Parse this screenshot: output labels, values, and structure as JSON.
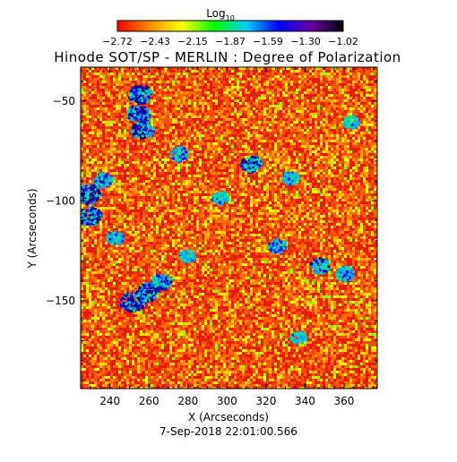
{
  "chart_data": {
    "type": "heatmap",
    "title": "Hinode SOT/SP - MERLIN : Degree of Polarization",
    "xlabel": "X (Arcseconds)",
    "ylabel": "Y (Arcseconds)",
    "timestamp": "7-Sep-2018 22:01:00.566",
    "colorbar": {
      "label_base": "Log",
      "label_sub": "10",
      "ticks": [
        "−2.72",
        "−2.43",
        "−2.15",
        "−1.87",
        "−1.59",
        "−1.30",
        "−1.02"
      ],
      "range": [
        -2.72,
        -1.02
      ],
      "colormap": "rainbow (red low → black high)",
      "stops": [
        "#ff0000",
        "#ff8c00",
        "#ffff00",
        "#00ff00",
        "#00ccff",
        "#0000ff",
        "#6a00a8",
        "#000000"
      ]
    },
    "xlim": [
      225,
      377
    ],
    "ylim": [
      -194,
      -33
    ],
    "x_ticks": [
      240,
      260,
      280,
      300,
      320,
      340,
      360
    ],
    "y_ticks": [
      -50,
      -100,
      -150
    ],
    "grid": false,
    "dominant_color": "#ff3a12",
    "field_colors": [
      "#e81d09",
      "#f44a0a",
      "#ff6a00",
      "#ff9a00",
      "#ffd000",
      "#f2ff00",
      "#9cff00"
    ],
    "patch_colors": [
      "#00e0a0",
      "#00aaff",
      "#1010ff",
      "#000088"
    ],
    "patches": [
      {
        "x": 255,
        "y": -46,
        "level": 0.9
      },
      {
        "x": 254,
        "y": -56,
        "level": 0.85
      },
      {
        "x": 256,
        "y": -64,
        "level": 0.8
      },
      {
        "x": 228,
        "y": -96,
        "level": 1.0
      },
      {
        "x": 229,
        "y": -107,
        "level": 0.9
      },
      {
        "x": 236,
        "y": -89,
        "level": 0.55
      },
      {
        "x": 251,
        "y": -150,
        "level": 0.95
      },
      {
        "x": 259,
        "y": -145,
        "level": 0.9
      },
      {
        "x": 266,
        "y": -140,
        "level": 0.7
      },
      {
        "x": 312,
        "y": -81,
        "level": 0.7
      },
      {
        "x": 275,
        "y": -76,
        "level": 0.55
      },
      {
        "x": 332,
        "y": -88,
        "level": 0.45
      },
      {
        "x": 325,
        "y": -122,
        "level": 0.55
      },
      {
        "x": 347,
        "y": -132,
        "level": 0.65
      },
      {
        "x": 360,
        "y": -136,
        "level": 0.55
      },
      {
        "x": 363,
        "y": -60,
        "level": 0.4
      },
      {
        "x": 296,
        "y": -98,
        "level": 0.4
      },
      {
        "x": 242,
        "y": -118,
        "level": 0.45
      },
      {
        "x": 336,
        "y": -168,
        "level": 0.4
      },
      {
        "x": 279,
        "y": -127,
        "level": 0.4
      }
    ]
  }
}
